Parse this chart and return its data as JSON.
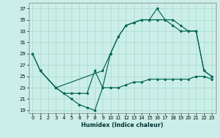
{
  "xlabel": "Humidex (Indice chaleur)",
  "background_color": "#cceee8",
  "grid_color": "#aaddcc",
  "line_color": "#006655",
  "xlim": [
    -0.5,
    23.5
  ],
  "ylim": [
    18.5,
    38
  ],
  "xticks": [
    0,
    1,
    2,
    3,
    4,
    5,
    6,
    7,
    8,
    9,
    10,
    11,
    12,
    13,
    14,
    15,
    16,
    17,
    18,
    19,
    20,
    21,
    22,
    23
  ],
  "yticks": [
    19,
    21,
    23,
    25,
    27,
    29,
    31,
    33,
    35,
    37
  ],
  "line1_x": [
    0,
    1,
    3,
    4,
    5,
    6,
    7,
    8,
    9,
    10,
    11,
    12,
    13,
    14,
    15,
    16,
    17,
    18,
    19,
    20,
    21,
    22,
    23
  ],
  "line1_y": [
    29,
    26,
    23,
    22,
    21,
    20,
    19.5,
    19,
    23,
    29,
    32,
    34,
    34.5,
    35,
    35,
    37,
    35,
    35,
    34,
    33,
    33,
    26,
    25
  ],
  "line2_x": [
    0,
    1,
    3,
    9,
    10,
    11,
    12,
    13,
    14,
    15,
    16,
    17,
    18,
    19,
    20,
    21,
    22,
    23
  ],
  "line2_y": [
    29,
    26,
    23,
    26,
    29,
    32,
    34,
    34.5,
    35,
    35,
    35,
    35,
    34,
    33,
    33,
    33,
    26,
    25
  ],
  "line3_x": [
    1,
    3,
    4,
    5,
    6,
    7,
    8,
    9,
    10,
    11,
    12,
    13,
    14,
    15,
    16,
    17,
    18,
    19,
    20,
    21,
    22,
    23
  ],
  "line3_y": [
    26,
    23,
    22,
    22,
    22,
    22,
    26,
    23,
    23,
    23,
    23.5,
    24,
    24,
    24.5,
    24.5,
    24.5,
    24.5,
    24.5,
    24.5,
    25,
    25,
    24.5
  ],
  "xlabel_fontsize": 6,
  "tick_fontsize": 5
}
